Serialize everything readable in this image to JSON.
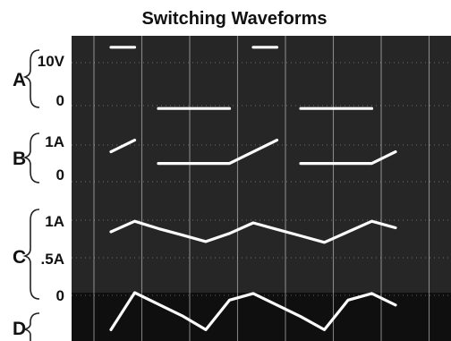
{
  "chart_data": {
    "type": "line",
    "title": "Switching Waveforms",
    "xlabel": "",
    "ylabel": "",
    "grid": true,
    "x": [
      0,
      1,
      2,
      3,
      4,
      5,
      6,
      7,
      8,
      9,
      10,
      11,
      12
    ],
    "xlim": [
      0,
      12
    ],
    "channels": [
      {
        "name": "A",
        "ticks": [
          "10V",
          "0"
        ],
        "tick_values": [
          10,
          0
        ],
        "ylim": [
          -1,
          11
        ],
        "series": [
          {
            "values": [
              10,
              10,
              0,
              0,
              0,
              0,
              10,
              10,
              0,
              0,
              0,
              0,
              10
            ]
          }
        ]
      },
      {
        "name": "B",
        "ticks": [
          "1A",
          "0"
        ],
        "tick_values": [
          1,
          0
        ],
        "ylim": [
          -0.9,
          1.1
        ],
        "series": [
          {
            "values": [
              0.5,
              1.0,
              0,
              0,
              0,
              0,
              0.5,
              1.0,
              0,
              0,
              0,
              0,
              0.5
            ]
          }
        ]
      },
      {
        "name": "C",
        "ticks": [
          "1A",
          ".5A",
          "0"
        ],
        "tick_values": [
          1,
          0.5,
          0
        ],
        "ylim": [
          0,
          1.05
        ],
        "series": [
          {
            "values": [
              0.84,
              0.97,
              0.88,
              0.8,
              0.72,
              0.82,
              0.95,
              0.87,
              0.79,
              0.71,
              0.84,
              0.97,
              0.89
            ]
          }
        ]
      },
      {
        "name": "D",
        "ticks": [],
        "tick_values": [],
        "ylim": [
          0,
          1
        ],
        "series": [
          {
            "values": [
              0.1,
              1,
              0.72,
              0.44,
              0.1,
              0.82,
              0.98,
              0.7,
              0.42,
              0.1,
              0.82,
              0.98,
              0.7
            ]
          }
        ]
      }
    ]
  },
  "colors": {
    "screen": "#262626",
    "screen_band": "#0f0f0f",
    "trace": "#fbfbfb",
    "grid": "#d8d8d8",
    "text": "#111111"
  }
}
